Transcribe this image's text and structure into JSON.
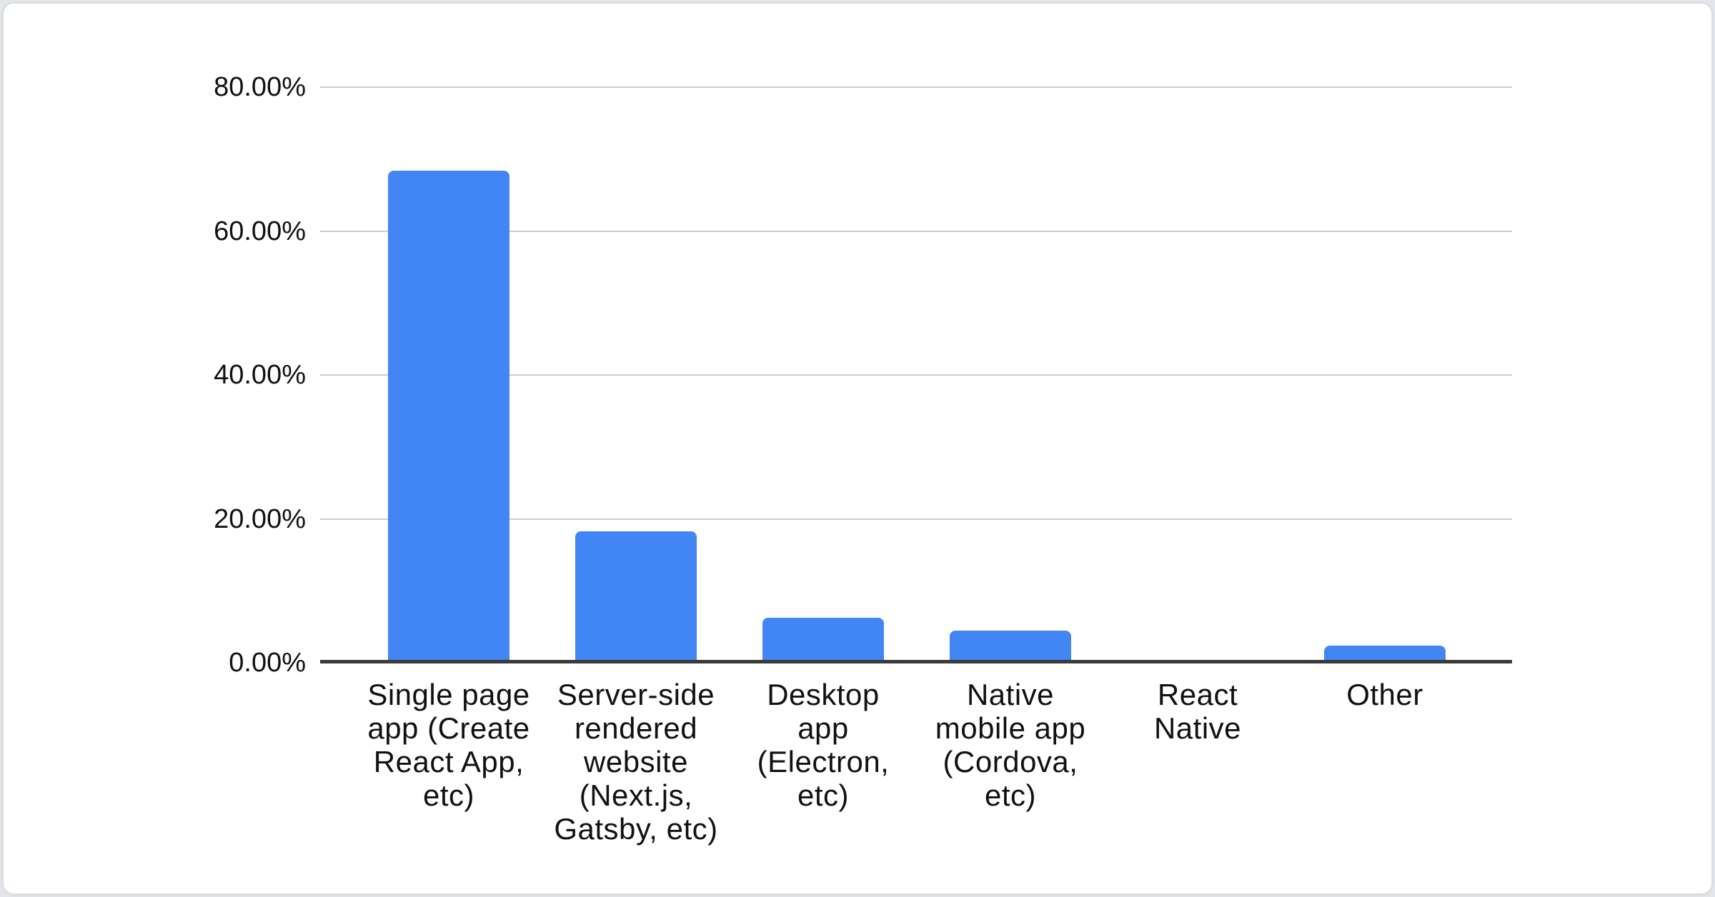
{
  "page": {
    "background_color": "#e3e6ea",
    "card_background": "#ffffff",
    "card_border_color": "#d9dce1"
  },
  "chart_data": {
    "type": "bar",
    "title": "",
    "xlabel": "",
    "ylabel": "",
    "categories": [
      "Single page app (Create React App, etc)",
      "Server-side rendered website (Next.js, Gatsby, etc)",
      "Desktop app (Electron, etc)",
      "Native mobile app (Cordova, etc)",
      "React Native",
      "Other"
    ],
    "category_lines": [
      [
        "Single page",
        "app (Create",
        "React App,",
        "etc)"
      ],
      [
        "Server-side",
        "rendered",
        "website",
        "(Next.js,",
        "Gatsby, etc)"
      ],
      [
        "Desktop",
        "app",
        "(Electron,",
        "etc)"
      ],
      [
        "Native",
        "mobile app",
        "(Cordova,",
        "etc)"
      ],
      [
        "React",
        "Native"
      ],
      [
        "Other"
      ]
    ],
    "values": [
      68.4,
      18.3,
      6.3,
      4.5,
      0,
      2.4
    ],
    "value_unit": "%",
    "ylim": [
      0,
      80
    ],
    "ytick_labels": [
      "80.00%",
      "60.00%",
      "40.00%",
      "20.00%",
      "0.00%"
    ],
    "ytick_values": [
      80,
      60,
      40,
      20,
      0
    ],
    "grid": true,
    "legend": "none",
    "bar_color": "#4285f4",
    "gridline_color": "#cccccc",
    "axis_line_color": "#3b3b3b",
    "text_color": "#111111"
  }
}
